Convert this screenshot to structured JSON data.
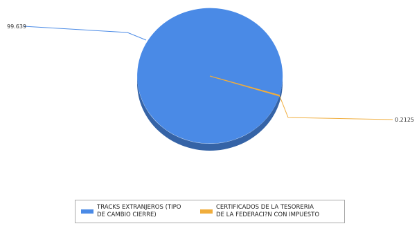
{
  "chart_data": {
    "type": "pie",
    "series": [
      {
        "name": "TRACKS EXTRANJEROS (TIPO DE CAMBIO CIERRE)",
        "name_lines": [
          "TRACKS EXTRANJEROS (TIPO",
          "DE CAMBIO CIERRE)"
        ],
        "value": 99.639,
        "label": "99.639",
        "color": "#4a8ae6"
      },
      {
        "name": "CERTIFICADOS DE LA TESORERIA DE LA FEDERACI?N CON IMPUESTO",
        "name_lines": [
          "CERTIFICADOS DE LA TESORERIA",
          "DE LA FEDERACI?N CON IMPUESTO"
        ],
        "value": 0.2125,
        "label": "0.2125",
        "color": "#f0ad3c"
      }
    ],
    "legend_position": "bottom",
    "style": "3d-pie"
  }
}
